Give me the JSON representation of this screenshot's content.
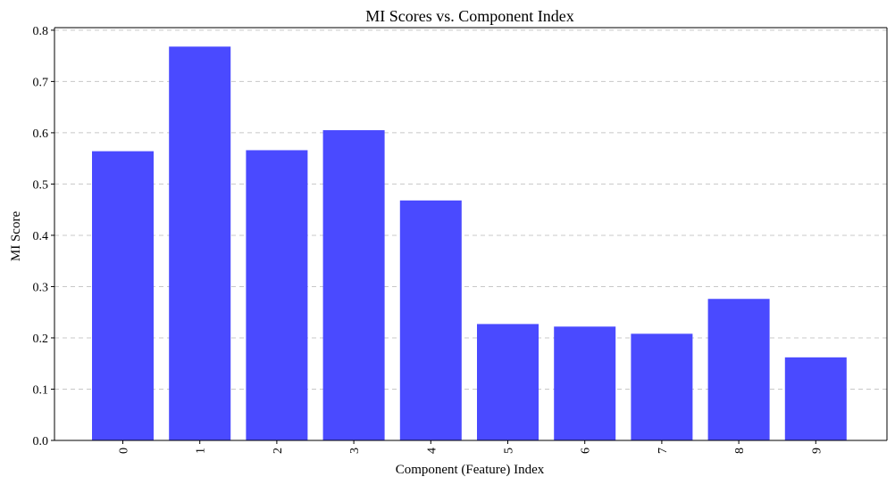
{
  "chart_data": {
    "type": "bar",
    "title": "MI Scores vs. Component Index",
    "xlabel": "Component (Feature) Index",
    "ylabel": "MI Score",
    "categories": [
      "0",
      "1",
      "2",
      "3",
      "4",
      "5",
      "6",
      "7",
      "8",
      "9"
    ],
    "values": [
      0.564,
      0.768,
      0.566,
      0.605,
      0.468,
      0.227,
      0.222,
      0.208,
      0.276,
      0.162
    ],
    "ylim": [
      0,
      0.805
    ],
    "yticks": [
      0.0,
      0.1,
      0.2,
      0.3,
      0.4,
      0.5,
      0.6,
      0.7,
      0.8
    ],
    "ytick_labels": [
      "0.0",
      "0.1",
      "0.2",
      "0.3",
      "0.4",
      "0.5",
      "0.6",
      "0.7",
      "0.8"
    ],
    "grid": "y-dashed",
    "bar_color": "#4a4aff",
    "xtick_rotation": "vertical"
  }
}
